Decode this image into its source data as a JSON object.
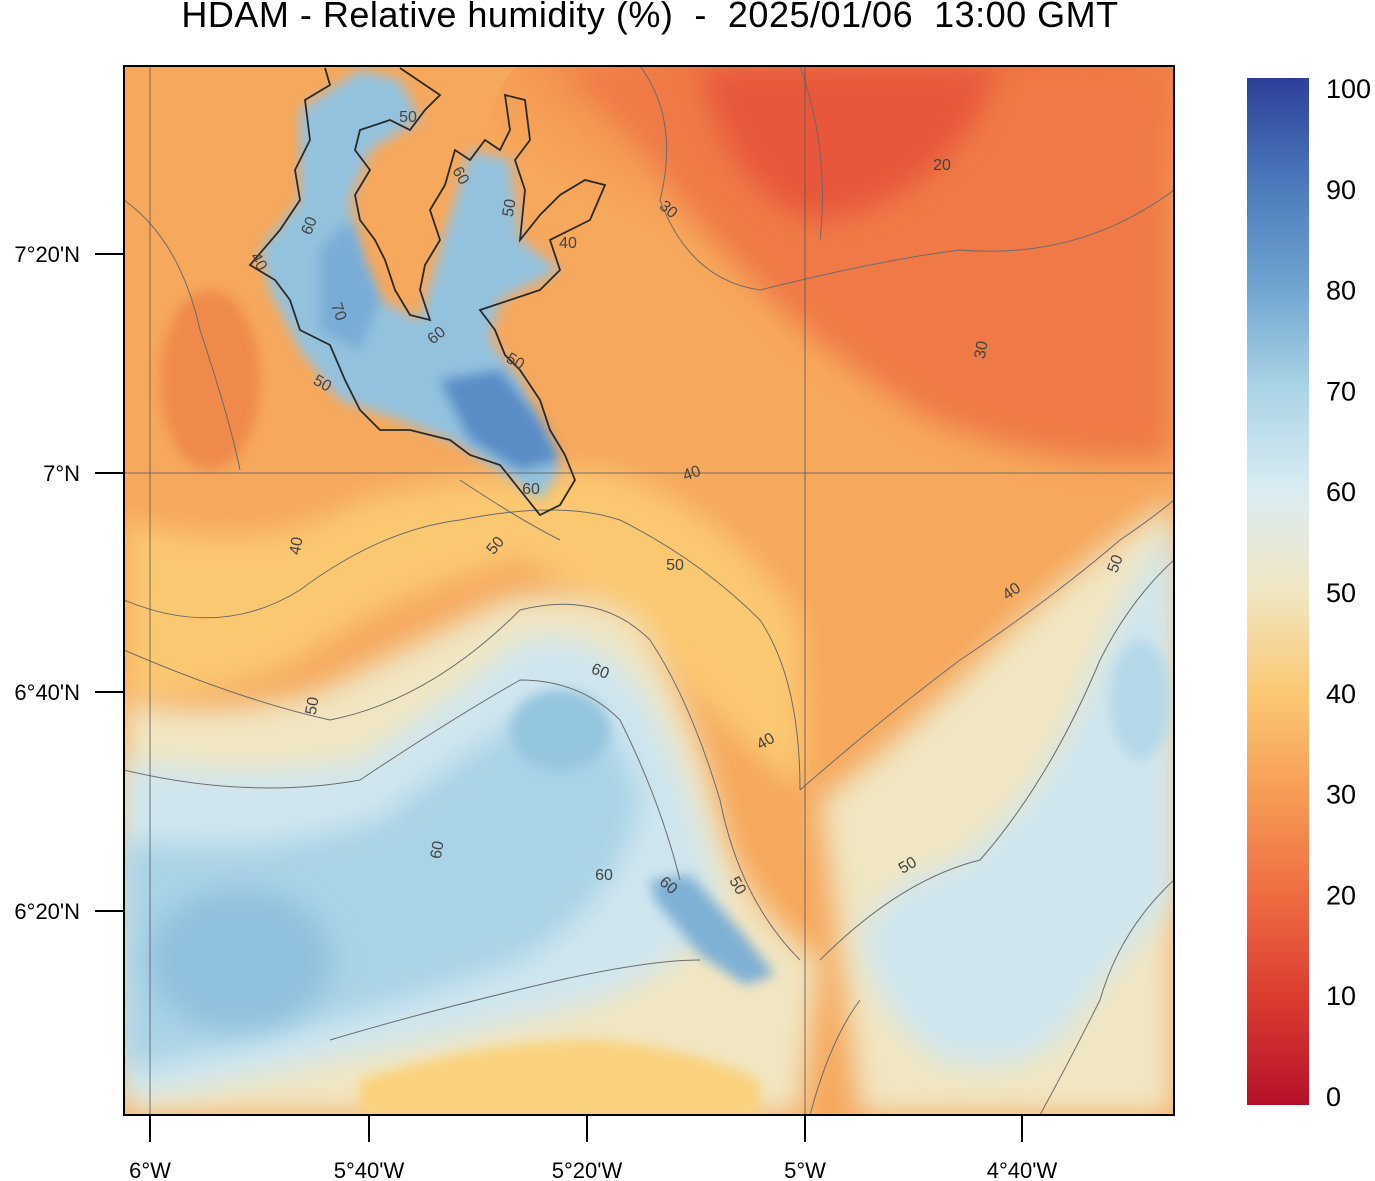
{
  "title": "HDAM - Relative humidity (%)  -  2025/01/06  13:00 GMT",
  "map": {
    "variable": "Relative humidity",
    "unit": "%",
    "x_ticks": [
      "6°W",
      "5°40'W",
      "5°20'W",
      "5°W",
      "4°40'W"
    ],
    "y_ticks": [
      "7°20'N",
      "7°N",
      "6°40'N",
      "6°20'N"
    ],
    "contour_labels": [
      "20",
      "30",
      "30",
      "40",
      "40",
      "40",
      "40",
      "40",
      "40",
      "50",
      "50",
      "50",
      "50",
      "50",
      "50",
      "50",
      "50",
      "50",
      "50",
      "60",
      "60",
      "60",
      "60",
      "60",
      "60",
      "60",
      "60",
      "70"
    ],
    "gridlines": true
  },
  "colorbar": {
    "ticks": [
      "0",
      "10",
      "20",
      "30",
      "40",
      "50",
      "60",
      "70",
      "80",
      "90",
      "100"
    ],
    "colors": {
      "c0": "#b5112a",
      "c10": "#d93a2f",
      "c20": "#ee6a40",
      "c30": "#f79a55",
      "c40": "#fbc872",
      "c50": "#f1e6c2",
      "c60": "#d9ecf3",
      "c70": "#a9d3e6",
      "c80": "#6ea3cf",
      "c90": "#4a78bb",
      "c100": "#2c3f98"
    }
  }
}
